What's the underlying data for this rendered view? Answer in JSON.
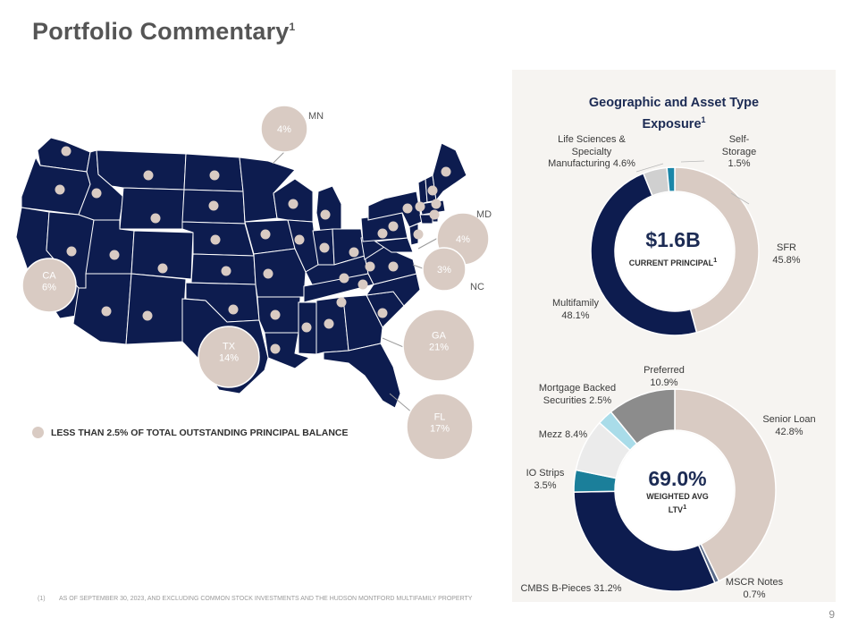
{
  "page": {
    "title": "Portfolio Commentary",
    "title_sup": "1",
    "page_number": "9"
  },
  "map": {
    "legend_text": "LESS THAN 2.5% OF TOTAL OUTSTANDING PRINCIPAL BALANCE",
    "colors": {
      "state_fill": "#0d1c4f",
      "state_border": "#ffffff",
      "bubble": "#d9cbc3",
      "dot": "#d9cbc3"
    },
    "bubbles": [
      {
        "state": "MN",
        "value": "4%"
      },
      {
        "state": "MD",
        "value": "4%"
      },
      {
        "state": "NC",
        "value": "3%"
      },
      {
        "state": "CA",
        "value": "CA\n6%"
      },
      {
        "state": "TX",
        "value": "TX\n14%"
      },
      {
        "state": "GA",
        "value": "GA\n21%"
      },
      {
        "state": "FL",
        "value": "FL\n17%"
      }
    ],
    "state_labels": {
      "mn": "MN",
      "md": "MD",
      "nc": "NC"
    }
  },
  "footnote": {
    "number": "(1)",
    "text": "AS OF SEPTEMBER 30, 2023, AND EXCLUDING COMMON STOCK INVESTMENTS AND THE HUDSON MONTFORD MULTIFAMILY PROPERTY"
  },
  "panel": {
    "title_line1": "Geographic and Asset Type",
    "title_line2": "Exposure",
    "title_sup": "1"
  },
  "chart_data": [
    {
      "type": "pie",
      "donut": true,
      "center_value": "$1.6B",
      "center_label": "CURRENT PRINCIPAL",
      "center_sup": "1",
      "slices": [
        {
          "name": "SFR",
          "value": 45.8,
          "label": "SFR\n45.8%",
          "color": "#d9cbc3"
        },
        {
          "name": "Multifamily",
          "value": 48.1,
          "label": "Multifamily\n48.1%",
          "color": "#0d1c4f"
        },
        {
          "name": "Life Sciences & Specialty Manufacturing",
          "value": 4.6,
          "label": "Life Sciences &\nSpecialty\nManufacturing 4.6%",
          "color": "#d0d0d0"
        },
        {
          "name": "Self-Storage",
          "value": 1.5,
          "label": "Self-\nStorage\n1.5%",
          "color": "#1b86a8"
        }
      ]
    },
    {
      "type": "pie",
      "donut": true,
      "center_value": "69.0%",
      "center_label": "WEIGHTED AVG LTV",
      "center_sup": "1",
      "slices": [
        {
          "name": "Senior Loan",
          "value": 42.8,
          "label": "Senior Loan\n42.8%",
          "color": "#d9cbc3"
        },
        {
          "name": "MSCR Notes",
          "value": 0.7,
          "label": "MSCR Notes\n0.7%",
          "color": "#5a6b8a"
        },
        {
          "name": "CMBS B-Pieces",
          "value": 31.2,
          "label": "CMBS B-Pieces 31.2%",
          "color": "#0d1c4f"
        },
        {
          "name": "IO Strips",
          "value": 3.5,
          "label": "IO Strips\n3.5%",
          "color": "#1b7f9a"
        },
        {
          "name": "Mezz",
          "value": 8.4,
          "label": "Mezz 8.4%",
          "color": "#ebebeb"
        },
        {
          "name": "Mortgage Backed Securities",
          "value": 2.5,
          "label": "Mortgage Backed\nSecurities 2.5%",
          "color": "#a9dce9"
        },
        {
          "name": "Preferred",
          "value": 10.9,
          "label": "Preferred\n10.9%",
          "color": "#8c8c8c"
        }
      ]
    }
  ]
}
